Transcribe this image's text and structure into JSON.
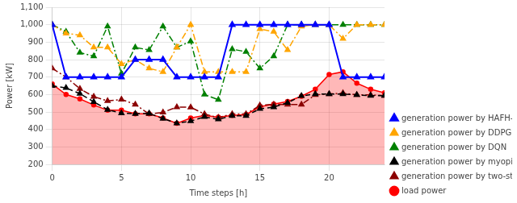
{
  "chart_data": {
    "type": "line",
    "xlabel": "Time steps [h]",
    "ylabel": "Power [kW]",
    "xlim": [
      0,
      24
    ],
    "ylim": [
      200,
      1100
    ],
    "xticks": [
      0,
      5,
      10,
      15,
      20
    ],
    "yticks": [
      200,
      300,
      400,
      500,
      600,
      700,
      800,
      900,
      1000,
      1100
    ],
    "x": [
      0,
      1,
      2,
      3,
      4,
      5,
      6,
      7,
      8,
      9,
      10,
      11,
      12,
      13,
      14,
      15,
      16,
      17,
      18,
      19,
      20,
      21,
      22,
      23,
      24
    ],
    "series": [
      {
        "name": "load power",
        "type": "area",
        "color": "#ff0000",
        "marker": "circle",
        "line_style": "solid",
        "values": [
          660,
          600,
          575,
          540,
          510,
          510,
          490,
          490,
          465,
          435,
          465,
          480,
          470,
          480,
          485,
          530,
          545,
          560,
          590,
          630,
          715,
          730,
          665,
          630,
          610
        ]
      },
      {
        "name": "generation power by HAFH-DDPG",
        "color": "#0000ff",
        "marker": "triangle",
        "line_style": "solid",
        "values": [
          1000,
          700,
          700,
          700,
          700,
          700,
          800,
          800,
          800,
          700,
          700,
          700,
          700,
          1000,
          1000,
          1000,
          1000,
          1000,
          1000,
          1000,
          1000,
          700,
          700,
          700,
          700
        ]
      },
      {
        "name": "generation power by DDPG",
        "color": "#ffa500",
        "marker": "triangle",
        "line_style": "dashdot",
        "values": [
          1000,
          950,
          940,
          870,
          870,
          775,
          800,
          750,
          730,
          870,
          1000,
          730,
          730,
          730,
          730,
          975,
          960,
          855,
          990,
          1000,
          1000,
          920,
          1000,
          1000,
          1000
        ]
      },
      {
        "name": "generation power by DQN",
        "color": "#008000",
        "marker": "triangle",
        "line_style": "dashdot",
        "values": [
          1000,
          960,
          840,
          820,
          990,
          720,
          870,
          855,
          990,
          870,
          905,
          600,
          570,
          860,
          845,
          750,
          820,
          1000,
          1000,
          1000,
          1000,
          1000,
          1000,
          1000,
          1000
        ]
      },
      {
        "name": "generation power by myopic",
        "color": "#000000",
        "marker": "triangle",
        "line_style": "dashed",
        "values": [
          650,
          638,
          605,
          558,
          513,
          493,
          490,
          492,
          462,
          435,
          448,
          472,
          458,
          478,
          478,
          518,
          528,
          553,
          592,
          603,
          603,
          603,
          598,
          593,
          593
        ]
      },
      {
        "name": "generation power by two-stage MPC",
        "color": "#8b0000",
        "marker": "triangle",
        "line_style": "dashdot",
        "values": [
          750,
          700,
          633,
          588,
          563,
          572,
          543,
          488,
          498,
          528,
          527,
          488,
          468,
          488,
          488,
          538,
          543,
          543,
          543,
          598,
          603,
          608,
          598,
          598,
          593
        ]
      }
    ],
    "grid": true,
    "legend": "lower right"
  }
}
